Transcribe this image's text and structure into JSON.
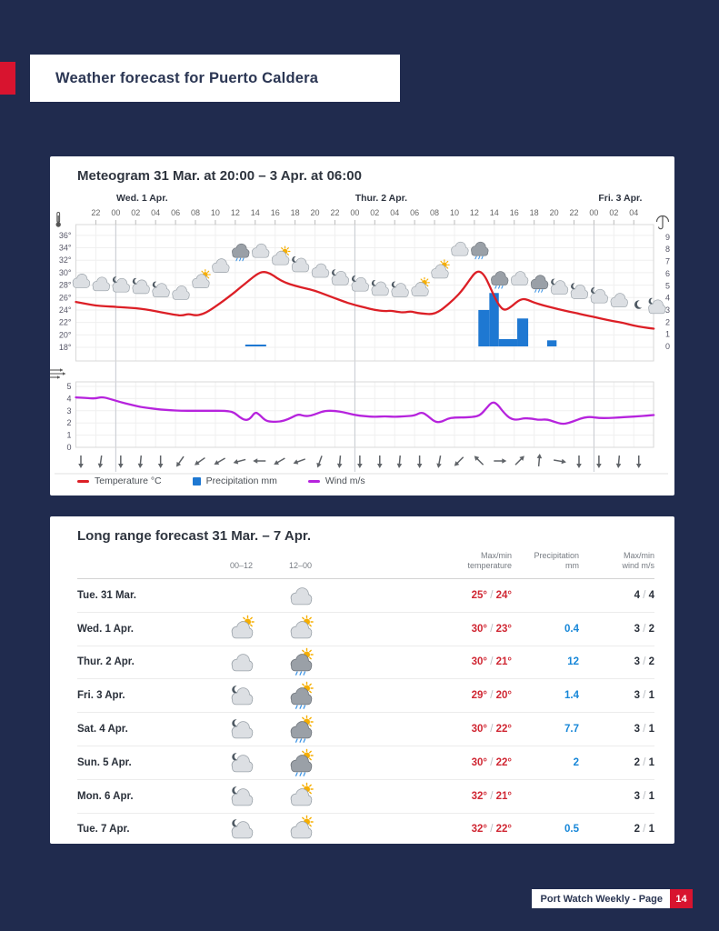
{
  "page": {
    "background": "#202B4E",
    "accent_red": "#D8142F"
  },
  "header": {
    "title": "Weather forecast for Puerto Caldera"
  },
  "meteogram": {
    "title": "Meteogram 31 Mar. at 20:00 – 3 Apr. at 06:00",
    "day_labels": [
      {
        "label": "Wed. 1 Apr.",
        "t": 4
      },
      {
        "label": "Thur. 2 Apr.",
        "t": 28
      },
      {
        "label": "Fri. 3 Apr.",
        "t": 52
      }
    ],
    "hour_labels": [
      "22",
      "00",
      "02",
      "04",
      "06",
      "08",
      "10",
      "12",
      "14",
      "16",
      "18",
      "20",
      "22",
      "00",
      "02",
      "04",
      "06",
      "08",
      "10",
      "12",
      "14",
      "16",
      "18",
      "20",
      "22",
      "00",
      "02",
      "04"
    ],
    "temp_ticks": [
      "36°",
      "34°",
      "32°",
      "30°",
      "28°",
      "26°",
      "24°",
      "22°",
      "20°",
      "18°"
    ],
    "precip_ticks": [
      "9",
      "8",
      "7",
      "6",
      "5",
      "4",
      "3",
      "2",
      "1",
      "0"
    ],
    "wind_ticks": [
      "5",
      "4",
      "3",
      "2",
      "1",
      "0"
    ],
    "legend": [
      {
        "label": "Temperature °C",
        "color": "#DC1F26",
        "swatch": "line"
      },
      {
        "label": "Precipitation mm",
        "color": "#1E78D2",
        "swatch": "square"
      },
      {
        "label": "Wind m/s",
        "color": "#B623DD",
        "swatch": "line"
      }
    ]
  },
  "chart_data": {
    "type": "line",
    "title": "Meteogram 31 Mar. at 20:00 – 3 Apr. at 06:00",
    "x_unit": "hours since 31 Mar. 20:00",
    "temp_axis_range": [
      18,
      37
    ],
    "precip_axis_range": [
      0,
      9
    ],
    "wind_axis_range": [
      0,
      5
    ],
    "temperature_c": [
      [
        0,
        25.3
      ],
      [
        1,
        25
      ],
      [
        2,
        24.7
      ],
      [
        3,
        24.6
      ],
      [
        4,
        24.5
      ],
      [
        5,
        24.4
      ],
      [
        6,
        24.3
      ],
      [
        7,
        24.1
      ],
      [
        8,
        23.8
      ],
      [
        9,
        23.5
      ],
      [
        10,
        23.2
      ],
      [
        10.7,
        23.1
      ],
      [
        11.3,
        23.4
      ],
      [
        12,
        23.1
      ],
      [
        12.7,
        23.3
      ],
      [
        13.5,
        24
      ],
      [
        14.5,
        25.1
      ],
      [
        15.5,
        26.3
      ],
      [
        16.5,
        27.6
      ],
      [
        17.5,
        28.9
      ],
      [
        18.2,
        29.8
      ],
      [
        18.8,
        30.2
      ],
      [
        19.5,
        29.9
      ],
      [
        20.2,
        29.1
      ],
      [
        21,
        28.4
      ],
      [
        22,
        27.9
      ],
      [
        23,
        27.5
      ],
      [
        24,
        27.1
      ],
      [
        25,
        26.5
      ],
      [
        26,
        25.9
      ],
      [
        27,
        25.3
      ],
      [
        28,
        24.8
      ],
      [
        29,
        24.4
      ],
      [
        30,
        24
      ],
      [
        31,
        23.8
      ],
      [
        31.6,
        23.9
      ],
      [
        32.2,
        23.7
      ],
      [
        33,
        23.6
      ],
      [
        33.6,
        23.8
      ],
      [
        34.3,
        23.5
      ],
      [
        35,
        23.4
      ],
      [
        35.7,
        23.3
      ],
      [
        36.4,
        23.7
      ],
      [
        37,
        24.4
      ],
      [
        38,
        25.8
      ],
      [
        38.8,
        27.2
      ],
      [
        39.5,
        28.8
      ],
      [
        40,
        29.9
      ],
      [
        40.5,
        30.3
      ],
      [
        41,
        29.6
      ],
      [
        41.5,
        28
      ],
      [
        42,
        26.1
      ],
      [
        42.5,
        24.7
      ],
      [
        43,
        23.9
      ],
      [
        43.6,
        24.4
      ],
      [
        44.4,
        25.5
      ],
      [
        44.9,
        25.8
      ],
      [
        45.4,
        25.6
      ],
      [
        46,
        25.2
      ],
      [
        47,
        24.7
      ],
      [
        48,
        24.3
      ],
      [
        49,
        23.9
      ],
      [
        50,
        23.6
      ],
      [
        51,
        23.2
      ],
      [
        52,
        22.9
      ],
      [
        53,
        22.5
      ],
      [
        54,
        22.2
      ],
      [
        55,
        21.9
      ],
      [
        56,
        21.5
      ],
      [
        57,
        21.2
      ],
      [
        58,
        21
      ]
    ],
    "precipitation_mm_bars": [
      {
        "t": 17.0,
        "dur": 2.1,
        "mm": 0.15
      },
      {
        "t": 40.4,
        "dur": 1.1,
        "mm": 3.0
      },
      {
        "t": 41.5,
        "dur": 0.95,
        "mm": 4.4
      },
      {
        "t": 42.45,
        "dur": 1.85,
        "mm": 0.6
      },
      {
        "t": 44.3,
        "dur": 1.1,
        "mm": 2.3
      },
      {
        "t": 47.3,
        "dur": 0.95,
        "mm": 0.5
      }
    ],
    "wind_ms": [
      [
        0,
        4.1
      ],
      [
        1,
        4.05
      ],
      [
        2,
        4
      ],
      [
        2.6,
        4.15
      ],
      [
        3.5,
        3.95
      ],
      [
        4.5,
        3.7
      ],
      [
        5.5,
        3.5
      ],
      [
        6.5,
        3.3
      ],
      [
        7.5,
        3.2
      ],
      [
        8.5,
        3.1
      ],
      [
        9.5,
        3.05
      ],
      [
        10.5,
        3
      ],
      [
        12,
        3
      ],
      [
        13.5,
        3
      ],
      [
        15,
        3
      ],
      [
        15.8,
        2.9
      ],
      [
        16.4,
        2.5
      ],
      [
        17,
        2.2
      ],
      [
        17.5,
        2.35
      ],
      [
        18,
        2.9
      ],
      [
        18.4,
        2.7
      ],
      [
        19,
        2.2
      ],
      [
        19.6,
        2.1
      ],
      [
        20.5,
        2.1
      ],
      [
        21.3,
        2.3
      ],
      [
        22,
        2.6
      ],
      [
        22.4,
        2.7
      ],
      [
        23,
        2.55
      ],
      [
        23.6,
        2.6
      ],
      [
        24.3,
        2.8
      ],
      [
        25,
        3
      ],
      [
        26,
        3
      ],
      [
        27,
        2.85
      ],
      [
        28,
        2.65
      ],
      [
        29,
        2.55
      ],
      [
        30,
        2.5
      ],
      [
        31,
        2.55
      ],
      [
        32,
        2.5
      ],
      [
        33,
        2.55
      ],
      [
        34,
        2.6
      ],
      [
        34.7,
        2.9
      ],
      [
        35.3,
        2.6
      ],
      [
        36,
        2.1
      ],
      [
        36.6,
        2.05
      ],
      [
        37.3,
        2.35
      ],
      [
        38,
        2.45
      ],
      [
        39,
        2.45
      ],
      [
        40,
        2.5
      ],
      [
        40.6,
        2.65
      ],
      [
        41.2,
        3.2
      ],
      [
        41.8,
        3.75
      ],
      [
        42.3,
        3.55
      ],
      [
        43,
        2.8
      ],
      [
        43.6,
        2.35
      ],
      [
        44.3,
        2.25
      ],
      [
        45,
        2.4
      ],
      [
        45.8,
        2.35
      ],
      [
        46.5,
        2.25
      ],
      [
        47.3,
        2.3
      ],
      [
        48,
        2.1
      ],
      [
        48.8,
        1.9
      ],
      [
        49.5,
        2
      ],
      [
        50.3,
        2.25
      ],
      [
        51,
        2.45
      ],
      [
        51.7,
        2.5
      ],
      [
        52.5,
        2.4
      ],
      [
        53.5,
        2.4
      ],
      [
        54.5,
        2.45
      ],
      [
        55.5,
        2.5
      ],
      [
        56.5,
        2.55
      ],
      [
        57.3,
        2.6
      ],
      [
        58,
        2.65
      ]
    ],
    "wind_direction_arrows": [
      [
        0.5,
        0
      ],
      [
        2.5,
        8
      ],
      [
        4.5,
        0
      ],
      [
        6.5,
        5
      ],
      [
        8.5,
        0
      ],
      [
        10.5,
        35
      ],
      [
        12.5,
        55
      ],
      [
        14.5,
        60
      ],
      [
        16.5,
        75
      ],
      [
        18.5,
        90
      ],
      [
        20.5,
        60
      ],
      [
        22.5,
        70
      ],
      [
        24.5,
        20
      ],
      [
        26.5,
        5
      ],
      [
        28.5,
        0
      ],
      [
        30.5,
        0
      ],
      [
        32.5,
        5
      ],
      [
        34.5,
        0
      ],
      [
        36.5,
        10
      ],
      [
        38.5,
        45
      ],
      [
        40.5,
        135
      ],
      [
        42.5,
        270
      ],
      [
        44.5,
        225
      ],
      [
        46.5,
        185
      ],
      [
        48.5,
        280
      ],
      [
        50.5,
        0
      ],
      [
        52.5,
        0
      ],
      [
        54.5,
        5
      ],
      [
        56.5,
        0
      ]
    ],
    "weather_icons": [
      [
        0.5,
        "cloud"
      ],
      [
        2.5,
        "cloud"
      ],
      [
        4.5,
        "moon-cloud"
      ],
      [
        6.5,
        "moon-cloud"
      ],
      [
        8.5,
        "moon-cloud"
      ],
      [
        10.5,
        "cloud"
      ],
      [
        12.5,
        "sun-cloud"
      ],
      [
        14.5,
        "cloud"
      ],
      [
        16.5,
        "rain-cloud"
      ],
      [
        18.5,
        "cloud"
      ],
      [
        20.5,
        "sun-cloud"
      ],
      [
        22.5,
        "moon-cloud"
      ],
      [
        24.5,
        "cloud"
      ],
      [
        26.5,
        "moon-cloud"
      ],
      [
        28.5,
        "moon-cloud"
      ],
      [
        30.5,
        "moon-cloud"
      ],
      [
        32.5,
        "moon-cloud"
      ],
      [
        34.5,
        "sun-cloud"
      ],
      [
        36.5,
        "sun-cloud"
      ],
      [
        38.5,
        "cloud"
      ],
      [
        40.5,
        "rain-cloud"
      ],
      [
        42.5,
        "rain-cloud"
      ],
      [
        44.5,
        "cloud"
      ],
      [
        46.5,
        "rain-cloud"
      ],
      [
        48.5,
        "moon-cloud"
      ],
      [
        50.5,
        "moon-cloud"
      ],
      [
        52.5,
        "moon-cloud"
      ],
      [
        54.5,
        "cloud"
      ],
      [
        56.5,
        "moon"
      ],
      [
        58.3,
        "moon-cloud"
      ]
    ]
  },
  "table": {
    "title": "Long range forecast 31 Mar. – 7 Apr.",
    "headers": {
      "am": "00–12",
      "pm": "12–00",
      "temp": [
        "Max/min",
        "temperature"
      ],
      "precip": [
        "Precipitation",
        "mm"
      ],
      "wind": [
        "Max/min",
        "wind m/s"
      ]
    },
    "rows": [
      {
        "day": "Tue. 31 Mar.",
        "am": "",
        "pm": "cloud",
        "tmax": "25°",
        "tmin": "24°",
        "precip": "",
        "wmax": "4",
        "wmin": "4"
      },
      {
        "day": "Wed. 1 Apr.",
        "am": "sun-cloud",
        "pm": "sun-cloud",
        "tmax": "30°",
        "tmin": "23°",
        "precip": "0.4",
        "wmax": "3",
        "wmin": "2"
      },
      {
        "day": "Thur. 2 Apr.",
        "am": "cloud",
        "pm": "sun-rain-cloud",
        "tmax": "30°",
        "tmin": "21°",
        "precip": "12",
        "wmax": "3",
        "wmin": "2"
      },
      {
        "day": "Fri. 3 Apr.",
        "am": "moon-cloud",
        "pm": "sun-rain-cloud",
        "tmax": "29°",
        "tmin": "20°",
        "precip": "1.4",
        "wmax": "3",
        "wmin": "1"
      },
      {
        "day": "Sat. 4 Apr.",
        "am": "moon-cloud",
        "pm": "sun-rain-cloud",
        "tmax": "30°",
        "tmin": "22°",
        "precip": "7.7",
        "wmax": "3",
        "wmin": "1"
      },
      {
        "day": "Sun. 5 Apr.",
        "am": "moon-cloud",
        "pm": "sun-rain-cloud",
        "tmax": "30°",
        "tmin": "22°",
        "precip": "2",
        "wmax": "2",
        "wmin": "1"
      },
      {
        "day": "Mon. 6 Apr.",
        "am": "moon-cloud",
        "pm": "sun-cloud",
        "tmax": "32°",
        "tmin": "21°",
        "precip": "",
        "wmax": "3",
        "wmin": "1"
      },
      {
        "day": "Tue. 7 Apr.",
        "am": "moon-cloud",
        "pm": "sun-cloud",
        "tmax": "32°",
        "tmin": "22°",
        "precip": "0.5",
        "wmax": "2",
        "wmin": "1"
      }
    ]
  },
  "footer": {
    "label": "Port Watch Weekly - Page",
    "page_number": "14"
  }
}
